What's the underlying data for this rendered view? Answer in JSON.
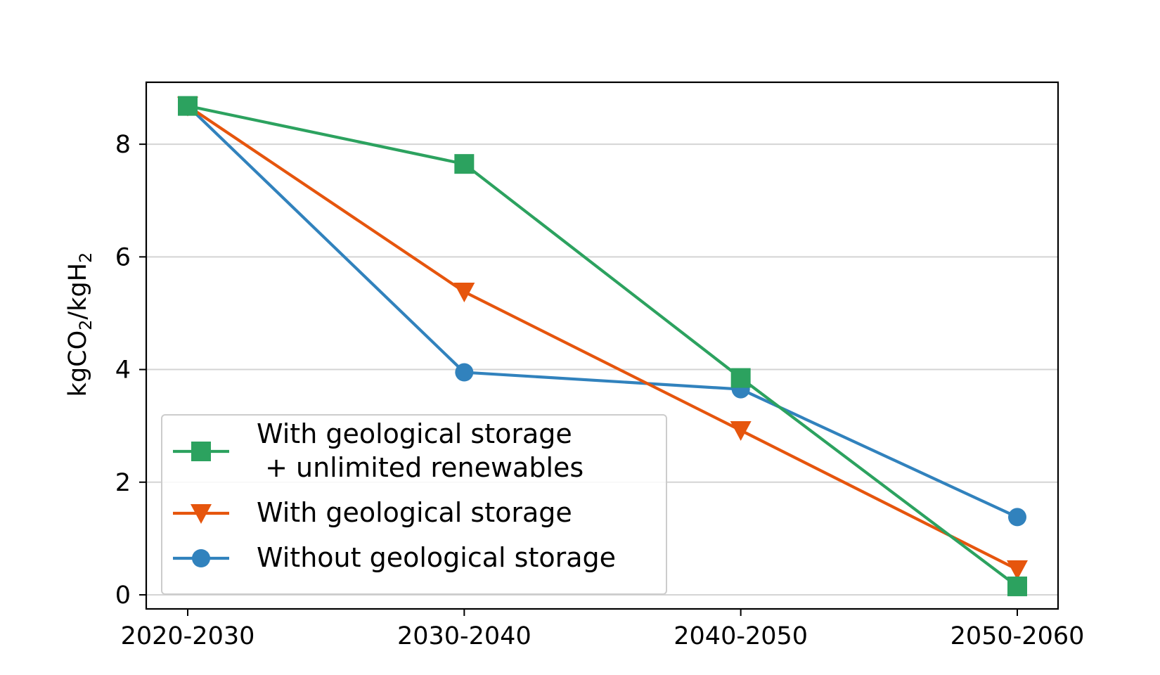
{
  "chart_data": {
    "type": "line",
    "categories": [
      "2020-2030",
      "2030-2040",
      "2040-2050",
      "2050-2060"
    ],
    "ylabel": {
      "p1": "kgCO",
      "s1": "2",
      "p2": "/kgH",
      "s2": "2"
    },
    "ylim": [
      -0.25,
      9.1
    ],
    "yticks": [
      0,
      2,
      4,
      6,
      8
    ],
    "grid": "y",
    "legend_position": "lower-left",
    "series": [
      {
        "name": "With geological storage\n + unlimited renewables",
        "name_lines": [
          "With geological storage",
          " + unlimited renewables"
        ],
        "values": [
          8.68,
          7.65,
          3.85,
          0.15
        ],
        "color": "#2ca25f",
        "marker": "square"
      },
      {
        "name": "With geological storage",
        "name_lines": [
          "With geological storage"
        ],
        "values": [
          8.68,
          5.38,
          2.92,
          0.45
        ],
        "color": "#e6550d",
        "marker": "triangle-down"
      },
      {
        "name": "Without geological storage",
        "name_lines": [
          "Without geological storage"
        ],
        "values": [
          8.68,
          3.95,
          3.65,
          1.38
        ],
        "color": "#3182bd",
        "marker": "circle"
      }
    ]
  }
}
